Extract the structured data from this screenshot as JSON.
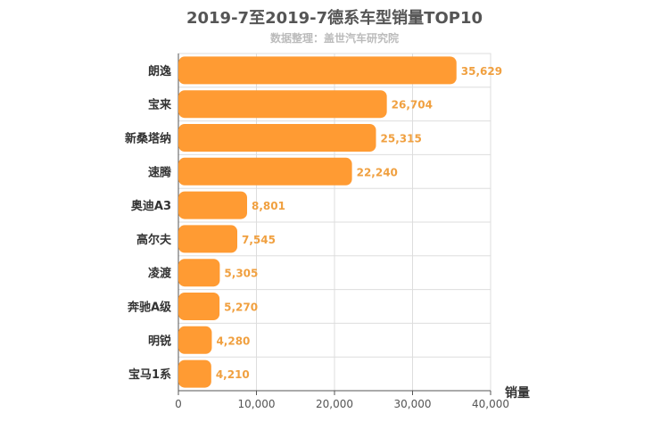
{
  "chart_data": {
    "type": "bar",
    "orientation": "horizontal",
    "title": "2019-7至2019-7德系车型销量TOP10",
    "subtitle": "数据整理：盖世汽车研究院",
    "xlabel": "销量",
    "ylabel": "",
    "categories": [
      "朗逸",
      "宝来",
      "新桑塔纳",
      "速腾",
      "奥迪A3",
      "高尔夫",
      "凌渡",
      "奔驰A级",
      "明锐",
      "宝马1系"
    ],
    "values": [
      35629,
      26704,
      25315,
      22240,
      8801,
      7545,
      5305,
      5270,
      4280,
      4210
    ],
    "value_labels": [
      "35,629",
      "26,704",
      "25,315",
      "22,240",
      "8,801",
      "7,545",
      "5,305",
      "5,270",
      "4,280",
      "4,210"
    ],
    "xlim": [
      0,
      40000
    ],
    "xticks": [
      0,
      10000,
      20000,
      30000,
      40000
    ],
    "xtick_labels": [
      "0",
      "10,000",
      "20,000",
      "30,000",
      "40,000"
    ],
    "grid": true,
    "bar_color": "#ff9b33",
    "label_color": "#f0a040"
  }
}
